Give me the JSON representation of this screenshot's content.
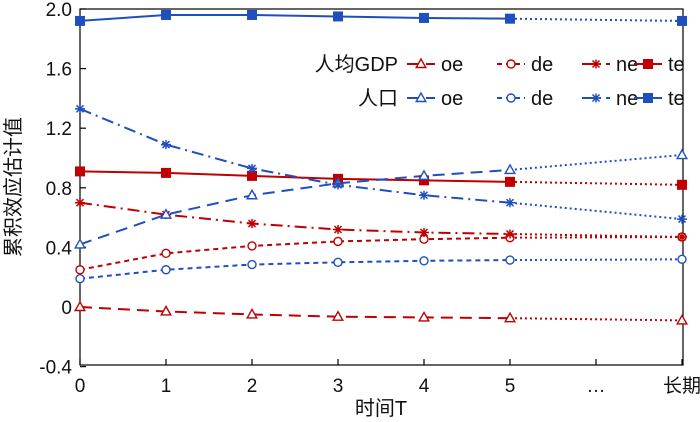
{
  "chart_data": {
    "type": "line",
    "title": "",
    "xlabel": "时间T",
    "ylabel": "累积效应估计值",
    "x_ticks": [
      "0",
      "1",
      "2",
      "3",
      "4",
      "5",
      "…",
      "长期"
    ],
    "y_ticks": [
      "-0.4",
      "0",
      "0.4",
      "0.8",
      "1.2",
      "1.6",
      "2.0"
    ],
    "ylim": [
      -0.4,
      2.0
    ],
    "grid": false,
    "legend_placement": "top-right",
    "legend_groups": [
      {
        "label": "人均GDP",
        "color": "#c00000",
        "items": [
          "oe",
          "de",
          "ne",
          "te"
        ]
      },
      {
        "label": "人口",
        "color": "#1f4fbf",
        "items": [
          "oe",
          "de",
          "ne",
          "te"
        ]
      }
    ],
    "note": "Segment between T=5 and 长期 is drawn dotted.",
    "series": [
      {
        "group": "人均GDP",
        "name": "oe",
        "color": "#c00000",
        "marker": "triangle",
        "dash": "dashed",
        "values": [
          0.0,
          -0.03,
          -0.05,
          -0.065,
          -0.07,
          -0.075,
          null,
          -0.09
        ]
      },
      {
        "group": "人均GDP",
        "name": "de",
        "color": "#c00000",
        "marker": "circle",
        "dash": "short-dashed",
        "values": [
          0.25,
          0.36,
          0.41,
          0.44,
          0.455,
          0.465,
          null,
          0.47
        ]
      },
      {
        "group": "人均GDP",
        "name": "ne",
        "color": "#c00000",
        "marker": "star",
        "dash": "dash-dot",
        "values": [
          0.7,
          0.62,
          0.56,
          0.52,
          0.5,
          0.49,
          null,
          0.47
        ]
      },
      {
        "group": "人均GDP",
        "name": "te",
        "color": "#c00000",
        "marker": "square",
        "dash": "solid",
        "values": [
          0.91,
          0.9,
          0.88,
          0.86,
          0.85,
          0.84,
          null,
          0.82
        ]
      },
      {
        "group": "人口",
        "name": "oe",
        "color": "#1f4fbf",
        "marker": "triangle",
        "dash": "dashed",
        "values": [
          0.42,
          0.62,
          0.75,
          0.83,
          0.88,
          0.92,
          null,
          1.02
        ]
      },
      {
        "group": "人口",
        "name": "de",
        "color": "#1f4fbf",
        "marker": "circle",
        "dash": "short-dashed",
        "values": [
          0.19,
          0.25,
          0.285,
          0.3,
          0.31,
          0.315,
          null,
          0.32
        ]
      },
      {
        "group": "人口",
        "name": "ne",
        "color": "#1f4fbf",
        "marker": "star",
        "dash": "dash-dot",
        "values": [
          1.33,
          1.09,
          0.93,
          0.82,
          0.75,
          0.7,
          null,
          0.59
        ]
      },
      {
        "group": "人口",
        "name": "te",
        "color": "#1f4fbf",
        "marker": "square",
        "dash": "solid",
        "values": [
          1.92,
          1.96,
          1.96,
          1.95,
          1.94,
          1.935,
          null,
          1.92
        ]
      }
    ]
  }
}
